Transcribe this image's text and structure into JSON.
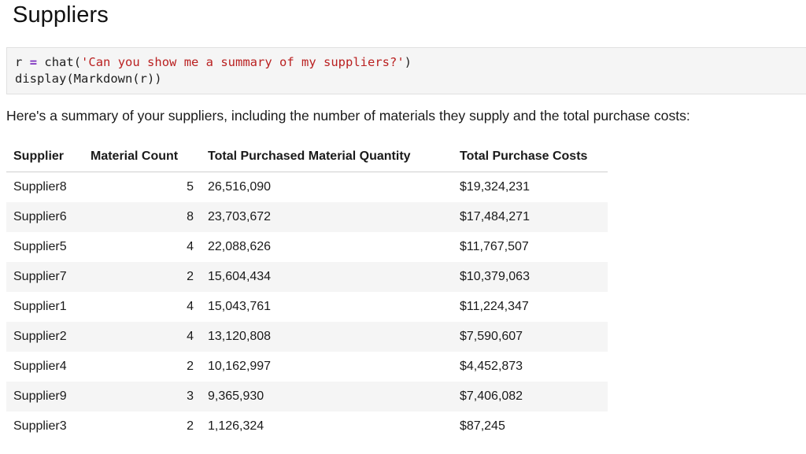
{
  "heading": "Suppliers",
  "code": {
    "line1": {
      "var": "r",
      "op": "=",
      "call_open": "chat(",
      "string": "'Can you show me a summary of my suppliers?'",
      "call_close": ")"
    },
    "line2": "display(Markdown(r))"
  },
  "output_text": "Here's a summary of your suppliers, including the number of materials they supply and the total purchase costs:",
  "table": {
    "headers": [
      "Supplier",
      "Material Count",
      "Total Purchased Material Quantity",
      "Total Purchase Costs"
    ],
    "rows": [
      [
        "Supplier8",
        "5",
        "26,516,090",
        "$19,324,231"
      ],
      [
        "Supplier6",
        "8",
        "23,703,672",
        "$17,484,271"
      ],
      [
        "Supplier5",
        "4",
        "22,088,626",
        "$11,767,507"
      ],
      [
        "Supplier7",
        "2",
        "15,604,434",
        "$10,379,063"
      ],
      [
        "Supplier1",
        "4",
        "15,043,761",
        "$11,224,347"
      ],
      [
        "Supplier2",
        "4",
        "13,120,808",
        "$7,590,607"
      ],
      [
        "Supplier4",
        "2",
        "10,162,997",
        "$4,452,873"
      ],
      [
        "Supplier9",
        "3",
        "9,365,930",
        "$7,406,082"
      ],
      [
        "Supplier3",
        "2",
        "1,126,324",
        "$87,245"
      ]
    ]
  },
  "colors": {
    "code_background": "#f5f5f5",
    "string": "#ba2121",
    "operator": "#7b2fbf",
    "row_stripe": "#f5f5f5"
  }
}
